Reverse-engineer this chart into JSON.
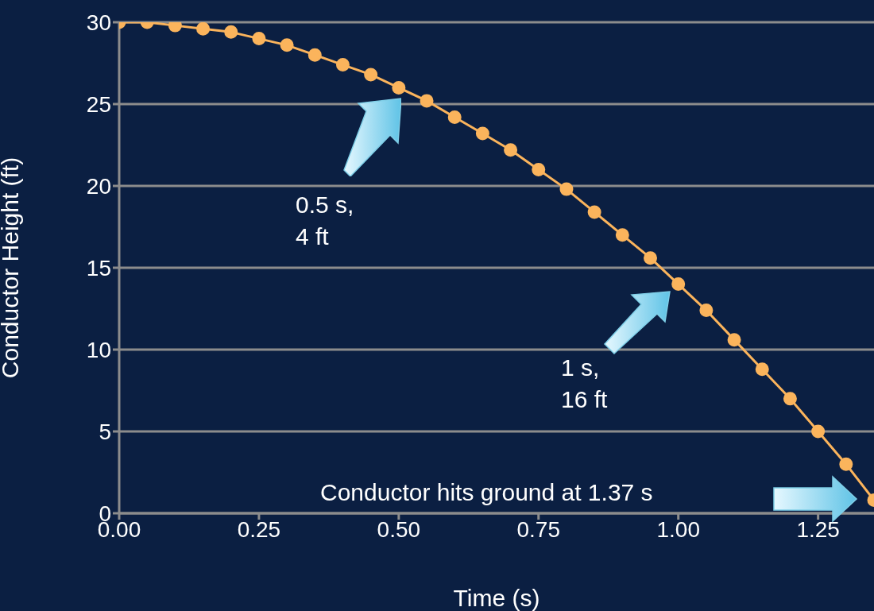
{
  "chart_data": {
    "type": "line",
    "xlabel": "Time (s)",
    "ylabel": "Conductor Height (ft)",
    "x": [
      0,
      0.05,
      0.1,
      0.15,
      0.2,
      0.25,
      0.3,
      0.35,
      0.4,
      0.45,
      0.5,
      0.55,
      0.6,
      0.65,
      0.7,
      0.75,
      0.8,
      0.85,
      0.9,
      0.95,
      1,
      1.05,
      1.1,
      1.15,
      1.2,
      1.25,
      1.3,
      1.35
    ],
    "series": [
      {
        "color": "#fbb45c",
        "values": [
          30,
          30.0,
          29.8,
          29.6,
          29.4,
          29,
          28.6,
          28.0,
          27.4,
          26.8,
          26,
          25.2,
          24.2,
          23.2,
          22.2,
          21,
          19.8,
          18.4,
          17.0,
          15.6,
          14,
          12.4,
          10.6,
          8.8,
          7.0,
          5,
          3.0,
          0.8
        ]
      }
    ],
    "xlim": [
      0,
      1.35
    ],
    "xticks": [
      {
        "value": 0,
        "label": "0.00"
      },
      {
        "value": 0.25,
        "label": "0.25"
      },
      {
        "value": 0.5,
        "label": "0.50"
      },
      {
        "value": 0.75,
        "label": "0.75"
      },
      {
        "value": 1,
        "label": "1.00"
      },
      {
        "value": 1.25,
        "label": "1.25"
      }
    ],
    "ylim": [
      0,
      30
    ],
    "yticks": [
      0,
      5,
      10,
      15,
      20,
      25,
      30
    ],
    "grid": "y",
    "marker": "circle",
    "line_style": "solid",
    "annotations": [
      "0.5 s,\n4 ft",
      "1 s,\n16 ft",
      "Conductor hits ground at 1.37 s"
    ]
  }
}
